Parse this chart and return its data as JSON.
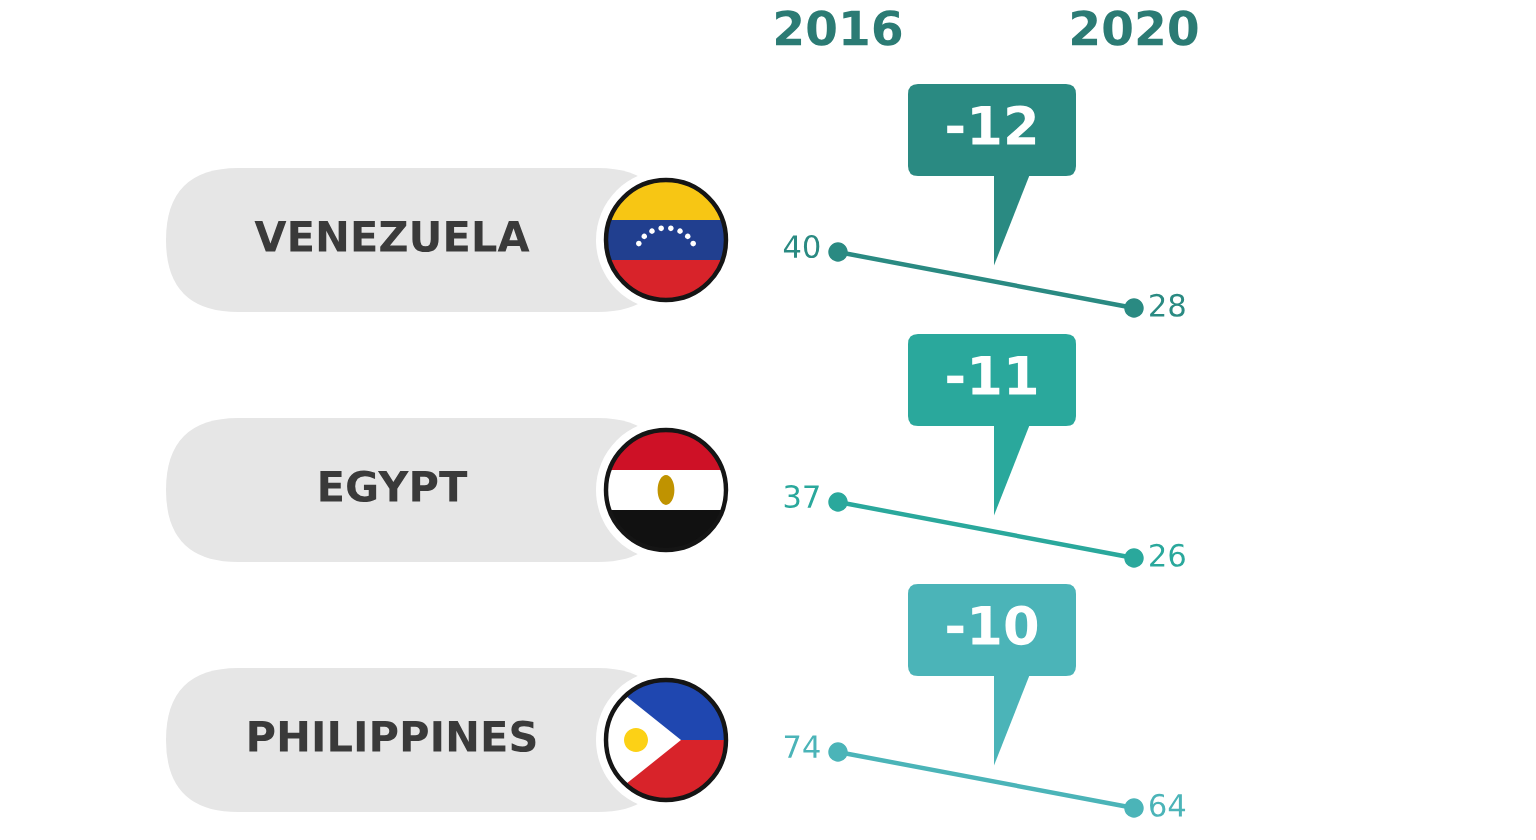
{
  "chart_data": [
    {
      "type": "line",
      "title": "VENEZUELA",
      "categories": [
        "2016",
        "2020"
      ],
      "series": [
        {
          "color": "#2a8a82",
          "values": [
            40,
            28
          ]
        }
      ],
      "marker": "circle",
      "data_labels": true,
      "annotations": [
        "-12"
      ],
      "tick_labels": "x"
    },
    {
      "type": "line",
      "title": "EGYPT",
      "categories": [
        "2016",
        "2020"
      ],
      "series": [
        {
          "color": "#2aa89c",
          "values": [
            37,
            26
          ]
        }
      ],
      "marker": "circle",
      "data_labels": true,
      "annotations": [
        "-11"
      ],
      "tick_labels": false
    },
    {
      "type": "line",
      "title": "PHILIPPINES",
      "categories": [
        "2016",
        "2020"
      ],
      "series": [
        {
          "color": "#4bb4b8",
          "values": [
            74,
            64
          ]
        }
      ],
      "marker": "circle",
      "data_labels": true,
      "annotations": [
        "-10"
      ],
      "tick_labels": false
    }
  ]
}
